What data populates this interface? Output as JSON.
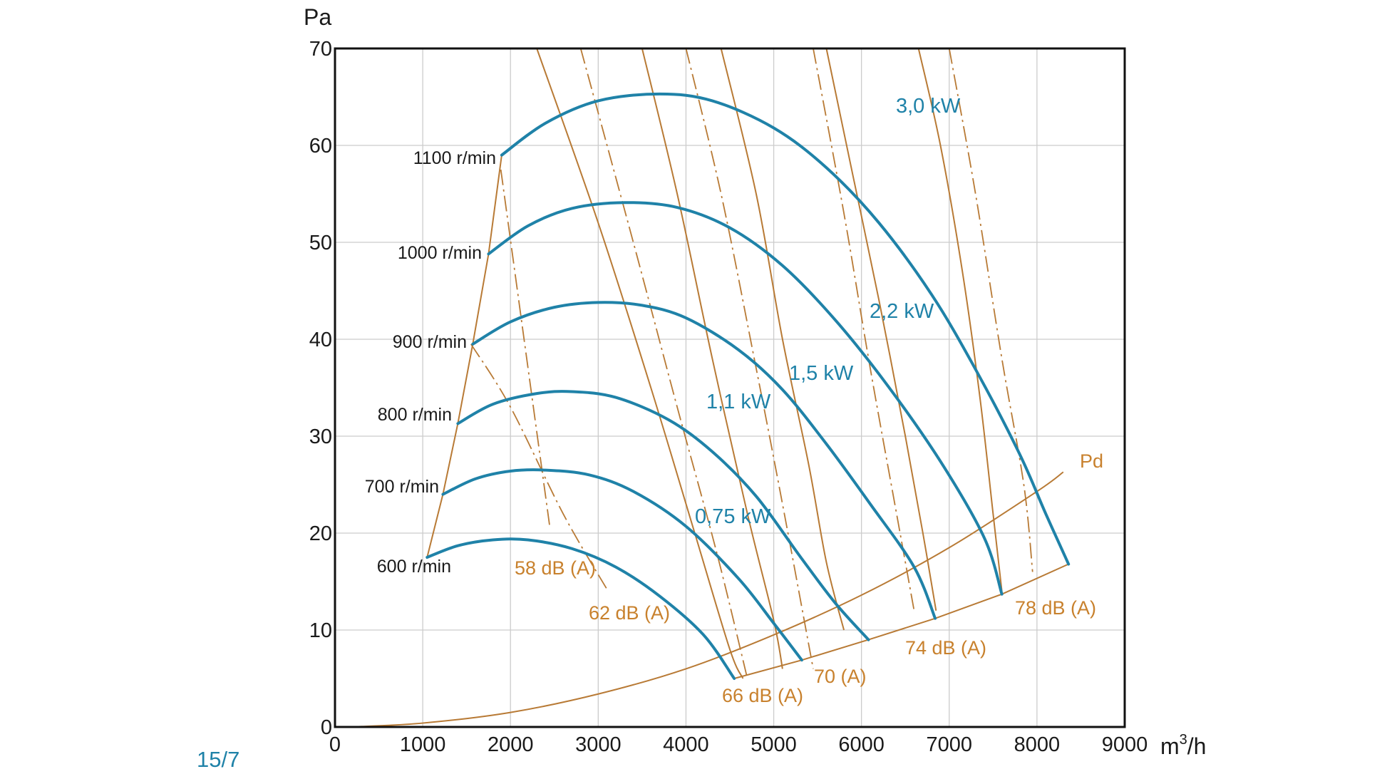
{
  "figure_ref": "15/7",
  "colors": {
    "fan_curve": "#1f82a8",
    "overlay": "#b87a35",
    "overlay_text": "#c8812d",
    "grid": "#cccccc",
    "frame": "#111111"
  },
  "chart_data": {
    "type": "line",
    "xlabel_base": "m",
    "xlabel_exp": "3",
    "xlabel_tail": "/h",
    "ylabel": "Pa",
    "xlim": [
      0,
      9000
    ],
    "ylim": [
      0,
      70
    ],
    "x_ticks": [
      0,
      1000,
      2000,
      3000,
      4000,
      5000,
      6000,
      7000,
      8000,
      9000
    ],
    "y_ticks": [
      0,
      10,
      20,
      30,
      40,
      50,
      60,
      70
    ],
    "grid": true,
    "speed_curves": [
      {
        "label": "600 r/min",
        "points": [
          [
            1050,
            17.5
          ],
          [
            1400,
            18.7
          ],
          [
            1800,
            19.3
          ],
          [
            2200,
            19.3
          ],
          [
            2700,
            18.4
          ],
          [
            3200,
            16.5
          ],
          [
            3700,
            13.5
          ],
          [
            4200,
            9.5
          ],
          [
            4550,
            5
          ]
        ]
      },
      {
        "label": "700 r/min",
        "points": [
          [
            1230,
            24
          ],
          [
            1600,
            25.6
          ],
          [
            2000,
            26.4
          ],
          [
            2400,
            26.5
          ],
          [
            2900,
            26
          ],
          [
            3400,
            24.3
          ],
          [
            4000,
            20.7
          ],
          [
            4600,
            15.3
          ],
          [
            5000,
            10.7
          ],
          [
            5320,
            6.9
          ]
        ]
      },
      {
        "label": "800 r/min",
        "points": [
          [
            1400,
            31.3
          ],
          [
            1800,
            33.3
          ],
          [
            2300,
            34.4
          ],
          [
            2700,
            34.6
          ],
          [
            3200,
            34
          ],
          [
            3800,
            31.7
          ],
          [
            4300,
            28.4
          ],
          [
            4800,
            23.8
          ],
          [
            5300,
            17.6
          ],
          [
            5700,
            12.8
          ],
          [
            6080,
            9
          ]
        ]
      },
      {
        "label": "900 r/min",
        "points": [
          [
            1570,
            39.5
          ],
          [
            2000,
            41.8
          ],
          [
            2500,
            43.3
          ],
          [
            3000,
            43.8
          ],
          [
            3500,
            43.5
          ],
          [
            4000,
            42.2
          ],
          [
            4600,
            38.9
          ],
          [
            5100,
            34.8
          ],
          [
            5600,
            29.2
          ],
          [
            6100,
            23
          ],
          [
            6600,
            16.5
          ],
          [
            6840,
            11.2
          ]
        ]
      },
      {
        "label": "1000 r/min",
        "points": [
          [
            1750,
            48.8
          ],
          [
            2200,
            51.7
          ],
          [
            2700,
            53.5
          ],
          [
            3300,
            54.1
          ],
          [
            3900,
            53.6
          ],
          [
            4500,
            51.5
          ],
          [
            5100,
            47.6
          ],
          [
            5700,
            42
          ],
          [
            6300,
            35.2
          ],
          [
            6900,
            27.4
          ],
          [
            7400,
            19.5
          ],
          [
            7600,
            13.7
          ]
        ]
      },
      {
        "label": "1100 r/min",
        "points": [
          [
            1900,
            59
          ],
          [
            2400,
            62.3
          ],
          [
            3000,
            64.6
          ],
          [
            3700,
            65.3
          ],
          [
            4300,
            64.6
          ],
          [
            5000,
            61.8
          ],
          [
            5600,
            57.7
          ],
          [
            6200,
            52
          ],
          [
            6800,
            44.6
          ],
          [
            7300,
            36.9
          ],
          [
            7800,
            28.2
          ],
          [
            8100,
            22
          ],
          [
            8360,
            16.8
          ]
        ]
      }
    ],
    "power_curves": [
      {
        "label": "0,75 kW",
        "points": [
          [
            2300,
            70
          ],
          [
            3000,
            52
          ],
          [
            3600,
            35
          ],
          [
            4100,
            20
          ],
          [
            4500,
            8
          ],
          [
            4650,
            5
          ]
        ]
      },
      {
        "label": "1,1 kW",
        "points": [
          [
            3500,
            70
          ],
          [
            3900,
            55
          ],
          [
            4300,
            38
          ],
          [
            4700,
            22
          ],
          [
            5000,
            11
          ],
          [
            5100,
            6
          ]
        ]
      },
      {
        "label": "1,5 kW",
        "points": [
          [
            4400,
            70
          ],
          [
            4800,
            55
          ],
          [
            5100,
            40
          ],
          [
            5400,
            27
          ],
          [
            5600,
            17
          ],
          [
            5800,
            10
          ]
        ]
      },
      {
        "label": "2,2 kW",
        "points": [
          [
            5600,
            70
          ],
          [
            5900,
            57
          ],
          [
            6200,
            44
          ],
          [
            6500,
            30
          ],
          [
            6700,
            20
          ],
          [
            6850,
            12
          ]
        ]
      },
      {
        "label": "3,0 kW",
        "points": [
          [
            6650,
            70
          ],
          [
            6900,
            60
          ],
          [
            7150,
            47
          ],
          [
            7350,
            34
          ],
          [
            7500,
            22
          ],
          [
            7600,
            14
          ]
        ]
      }
    ],
    "noise_lines": [
      {
        "label": "58 dB (A)",
        "points": [
          [
            1890,
            57.5
          ],
          [
            2450,
            20.5
          ]
        ]
      },
      {
        "label": "62 dB (A)",
        "points": [
          [
            1550,
            39.5
          ],
          [
            2000,
            33
          ],
          [
            2600,
            22
          ],
          [
            3100,
            14.2
          ]
        ]
      },
      {
        "label": "66 dB (A)",
        "points": [
          [
            2800,
            70
          ],
          [
            3400,
            50
          ],
          [
            3900,
            33
          ],
          [
            4350,
            18
          ],
          [
            4700,
            5
          ]
        ]
      },
      {
        "label": "70 (A)",
        "points": [
          [
            4000,
            70
          ],
          [
            4400,
            55
          ],
          [
            4800,
            37
          ],
          [
            5100,
            23
          ],
          [
            5450,
            6
          ]
        ]
      },
      {
        "label": "74 dB (A)",
        "points": [
          [
            5450,
            70
          ],
          [
            5800,
            53
          ],
          [
            6100,
            37
          ],
          [
            6400,
            22
          ],
          [
            6600,
            12
          ]
        ]
      },
      {
        "label": "78 dB (A)",
        "points": [
          [
            7000,
            70
          ],
          [
            7300,
            55
          ],
          [
            7600,
            38
          ],
          [
            7850,
            25
          ],
          [
            7950,
            16
          ]
        ]
      }
    ],
    "start_line": [
      [
        1050,
        17.5
      ],
      [
        1230,
        24
      ],
      [
        1400,
        31.3
      ],
      [
        1570,
        39.5
      ],
      [
        1750,
        48.8
      ],
      [
        1900,
        59
      ]
    ],
    "end_line": [
      [
        4550,
        5
      ],
      [
        5320,
        6.9
      ],
      [
        6080,
        9
      ],
      [
        6840,
        11.2
      ],
      [
        7600,
        13.7
      ],
      [
        8360,
        16.8
      ]
    ],
    "dynamic_pressure": {
      "label": "Pd",
      "points": [
        [
          180,
          0
        ],
        [
          1000,
          0.4
        ],
        [
          2000,
          1.5
        ],
        [
          3000,
          3.4
        ],
        [
          4000,
          6
        ],
        [
          5000,
          9.5
        ],
        [
          6000,
          13.6
        ],
        [
          7000,
          18.5
        ],
        [
          8000,
          24.3
        ],
        [
          8300,
          26.3
        ]
      ]
    }
  }
}
